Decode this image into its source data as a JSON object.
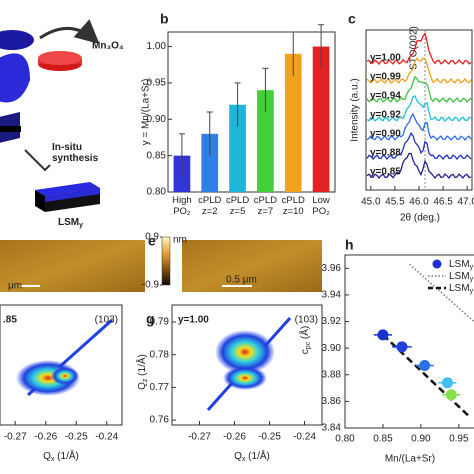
{
  "chart_data": [
    {
      "type": "bar",
      "panel": "b",
      "ylabel": "y = Mn/(La+Sr)",
      "categories": [
        "High\nPO₂",
        "cPLD\nz=2",
        "cPLD\nz=5",
        "cPLD\nz=7",
        "cPLD\nz=10",
        "Low\nPO₂"
      ],
      "values": [
        0.85,
        0.88,
        0.92,
        0.94,
        0.99,
        1.0
      ],
      "errors": [
        0.03,
        0.03,
        0.03,
        0.03,
        0.03,
        0.03
      ],
      "colors": [
        "#3434d6",
        "#2f7fe6",
        "#1fb5d6",
        "#46cf3c",
        "#f2a11e",
        "#e02222"
      ],
      "ylim": [
        0.8,
        1.02
      ],
      "yticks": [
        {
          "value": 0.8,
          "label": "0.80"
        },
        0.85,
        {
          "value": 0.9,
          "label": "0.90"
        },
        0.95,
        {
          "value": 1.0,
          "label": "1.00"
        }
      ]
    },
    {
      "type": "scatter",
      "panel": "h",
      "xlabel": "Mn/(La+Sr)",
      "ylabel": {
        "text": "c",
        "sub": "pc",
        "tail": " (Å)"
      },
      "x": [
        0.85,
        0.875,
        0.905,
        0.935,
        0.94
      ],
      "values": [
        3.91,
        3.901,
        3.887,
        3.874,
        3.865
      ],
      "xerr": [
        0.012,
        0.013,
        0.012,
        0.012,
        0.012
      ],
      "colors": [
        "#1a2fd0",
        "#2140de",
        "#2a6ee8",
        "#3ec0f0",
        "#86e048"
      ],
      "lines": [
        {
          "style": "dotted",
          "x": [
            0.885,
            0.97
          ],
          "values": [
            3.963,
            3.92
          ]
        },
        {
          "style": "dashed",
          "x": [
            0.85,
            0.965
          ],
          "values": [
            3.91,
            3.848
          ]
        }
      ],
      "legend": [
        {
          "text": "LSM",
          "sub": "y"
        },
        {
          "text": "LSM",
          "sub": "y"
        },
        {
          "text": "LSM",
          "sub": "y"
        }
      ],
      "xlim": [
        0.8,
        0.97
      ],
      "xticks": [
        {
          "value": 0.8,
          "label": "0.80"
        },
        0.85,
        {
          "value": 0.9,
          "label": "0.90"
        },
        0.95
      ],
      "ylim": [
        3.84,
        3.97
      ],
      "yticks": [
        3.84,
        3.86,
        3.88,
        {
          "value": 3.9,
          "label": "3.90"
        },
        3.92,
        3.94,
        3.96
      ]
    }
  ],
  "panels": {
    "a": {
      "product": "Mn₃O₄",
      "step": "In-situ\nsynthesis",
      "film": {
        "text": "LSM",
        "sub": "y"
      }
    },
    "c": {
      "letter": "c",
      "ylabel": "Intensity (a.u.)",
      "xlabel": "2θ (deg.)",
      "peak": "STO(002)",
      "curves": [
        "y=1.00",
        "y=0.99",
        "y=0.94",
        "y=0.92",
        "y=0.90",
        "y=0.88",
        "y=0.85"
      ],
      "xlim": [
        44.9,
        47.1
      ],
      "xticks": [
        {
          "value": 45,
          "label": "45.0"
        },
        45.5,
        {
          "value": 46,
          "label": "46.0"
        },
        46.5,
        {
          "value": 47,
          "label": "47.0"
        }
      ]
    },
    "d": {
      "scale": "μm"
    },
    "e": {
      "letter": "e",
      "unit": "nm",
      "cbticks": [
        0.9,
        -0.9
      ],
      "scale": "0.5 μm"
    },
    "f": {
      "label": ".85",
      "index": "(103)",
      "xticks": [
        -0.27,
        -0.26,
        -0.25,
        -0.24
      ],
      "xlabel": {
        "text": "Q",
        "sub": "x",
        "tail": " (1/Å)"
      }
    },
    "g": {
      "letter": "g",
      "label": "y=1.00",
      "index": "(103)",
      "xticks": [
        -0.27,
        -0.26,
        -0.25,
        -0.24
      ],
      "xlabel": {
        "text": "Q",
        "sub": "x",
        "tail": " (1/Å)"
      },
      "ylabel": {
        "text": "Q",
        "sub": "z",
        "tail": " (1/Å)"
      },
      "yticks": [
        0.79,
        0.78,
        0.77,
        0.76
      ]
    }
  }
}
